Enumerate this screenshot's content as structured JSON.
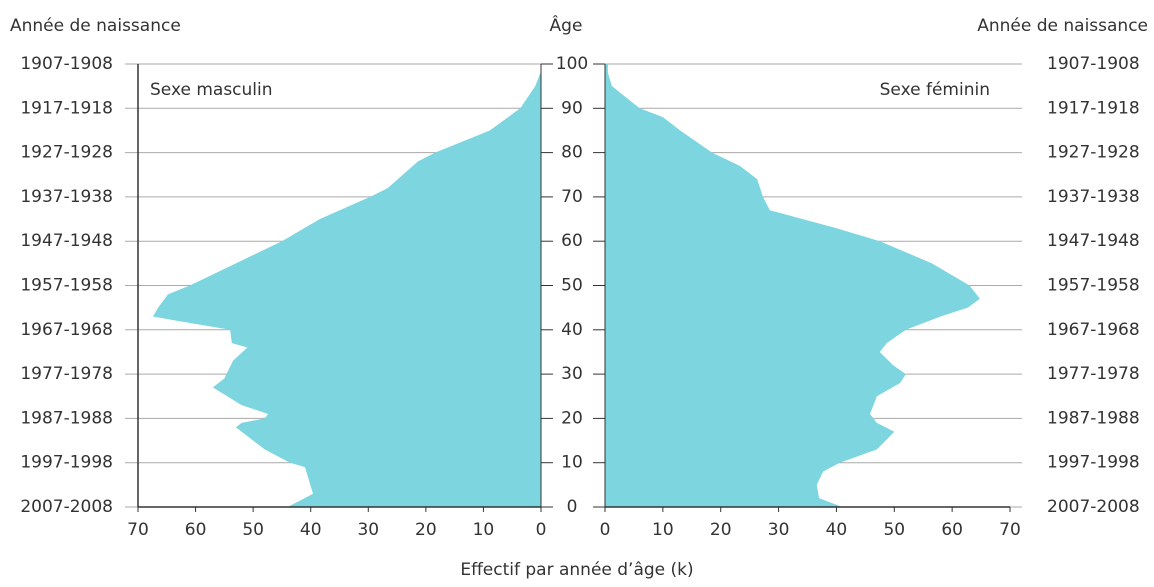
{
  "chart_data": {
    "type": "pyramid",
    "left_title": "Année de naissance",
    "right_title": "Année de naissance",
    "y_label": "Âge",
    "x_label": "Effectif par année d’âge (k)",
    "ylim": [
      0,
      100
    ],
    "yticks": [
      0,
      10,
      20,
      30,
      40,
      50,
      60,
      70,
      80,
      90,
      100
    ],
    "birth_year_labels": [
      "2007-2008",
      "1997-1998",
      "1987-1988",
      "1977-1978",
      "1967-1968",
      "1957-1958",
      "1947-1948",
      "1937-1938",
      "1927-1928",
      "1917-1918",
      "1907-1908"
    ],
    "xlim": [
      0,
      70
    ],
    "xticks": [
      0,
      10,
      20,
      30,
      40,
      50,
      60,
      70
    ],
    "grid": true,
    "series": [
      {
        "name": "Sexe masculin",
        "side": "left",
        "color": "#7dd5df",
        "ages": [
          0,
          3,
          9,
          10,
          13,
          18,
          19,
          20,
          21,
          23,
          27,
          29,
          33,
          36,
          37,
          40,
          42,
          43,
          45,
          48,
          50,
          55,
          60,
          65,
          70,
          72,
          75,
          78,
          80,
          85,
          88,
          90,
          95,
          98,
          100
        ],
        "values": [
          44,
          39.6,
          41,
          43.6,
          48,
          53,
          52,
          48,
          47.4,
          52,
          57,
          55,
          53.5,
          51,
          53.7,
          54,
          63,
          67.4,
          66.5,
          64.8,
          61,
          53,
          45,
          38.4,
          29.7,
          26.6,
          24,
          21.4,
          18.4,
          8.9,
          5.7,
          3.6,
          1,
          0.1,
          0
        ]
      },
      {
        "name": "Sexe féminin",
        "side": "right",
        "color": "#7dd5df",
        "ages": [
          0,
          2,
          5,
          8,
          10,
          13,
          17,
          19,
          21,
          25,
          28,
          30,
          32,
          35,
          37,
          40,
          43,
          45,
          47,
          50,
          55,
          60,
          63,
          67,
          70,
          74,
          77,
          80,
          85,
          88,
          90,
          95,
          98,
          100
        ],
        "values": [
          41,
          37,
          36.6,
          37.7,
          40.6,
          47,
          50,
          47,
          45.8,
          47,
          51,
          52,
          49.8,
          47.5,
          48.7,
          52,
          58,
          62.7,
          64.8,
          63,
          56.5,
          47.5,
          39.8,
          28.5,
          27.3,
          26.3,
          23.3,
          18.5,
          13,
          10,
          6,
          1.2,
          0.5,
          0.5
        ]
      }
    ]
  }
}
